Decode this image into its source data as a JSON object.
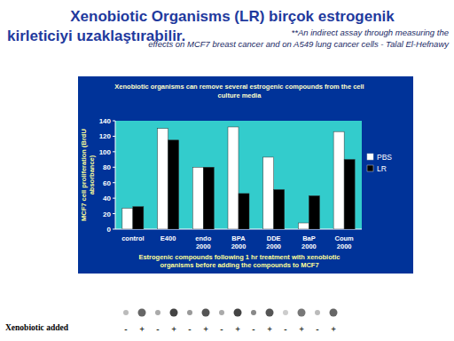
{
  "header": {
    "title_line1": "Xenobiotic Organisms (LR) birçok estrogenik",
    "title_line2": "kirleticiyi uzaklaştırabilir.",
    "note_line1": "**An indirect assay through measuring the",
    "note_line2": "effects on MCF7 breast cancer and on A549 lung cancer cells  - Talal El-Hefnawy"
  },
  "chart_data": {
    "type": "bar",
    "title": "Xenobiotic organisms can remove several estrogenic compounds from the cell culture media",
    "x_label": "Estrogenic compounds following 1 hr treatment with xenobiotic organisms before adding the compounds to MCF7",
    "y_label": "MCF7 cell proliferation (BrdU absorbance)",
    "categories": [
      "control",
      "E400",
      "endo 2000",
      "BPA 2000",
      "DDE 2000",
      "BaP 2000",
      "Coum 2000"
    ],
    "series": [
      {
        "name": "PBS",
        "color": "#ffffff",
        "values": [
          27,
          130,
          80,
          132,
          93,
          8,
          126
        ]
      },
      {
        "name": "LR",
        "color": "#000000",
        "values": [
          29,
          115,
          80,
          46,
          51,
          43,
          90
        ]
      }
    ],
    "ylim": [
      0,
      140
    ],
    "yticks": [
      0,
      20,
      40,
      60,
      80,
      100,
      120,
      140
    ],
    "grid": false,
    "legend": "right"
  },
  "footer": {
    "label": "Xenobiotic added",
    "signs": [
      "-",
      "+",
      "-",
      "+",
      "-",
      "+",
      "-",
      "+",
      "-",
      "+",
      "-",
      "+",
      "-",
      "+"
    ]
  }
}
